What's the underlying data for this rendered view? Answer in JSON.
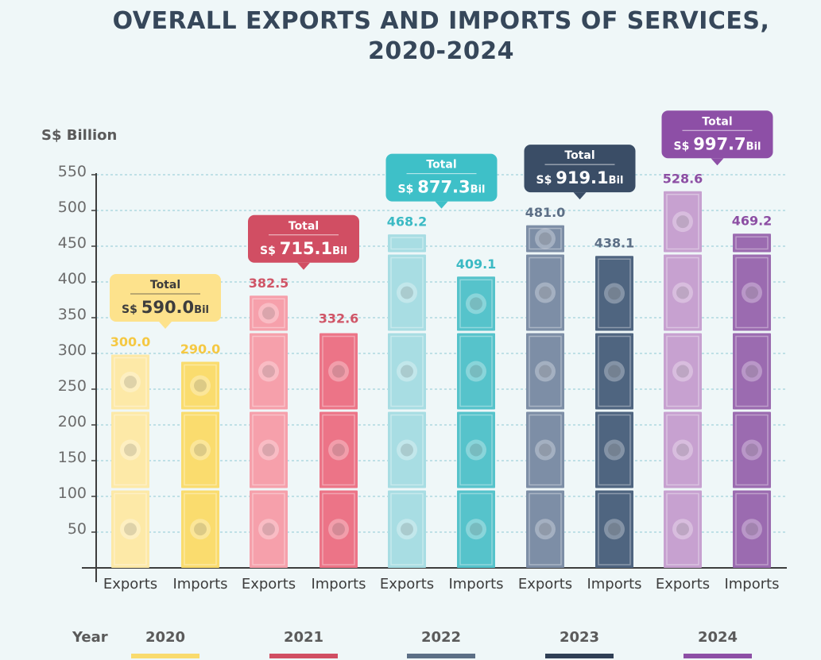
{
  "title_line1": "OVERALL EXPORTS AND IMPORTS OF SERVICES,",
  "title_line2": "2020-2024",
  "legend_label": "Year",
  "total_label": "Total",
  "currency_prefix": "S$",
  "unit_suffix": "Bil",
  "chart_data": {
    "type": "bar",
    "ylabel": "S$ Billion",
    "ylim": [
      0,
      550
    ],
    "yticks": [
      50,
      100,
      150,
      200,
      250,
      300,
      350,
      400,
      450,
      500,
      550
    ],
    "categories": [
      "Exports",
      "Imports",
      "Exports",
      "Imports",
      "Exports",
      "Imports",
      "Exports",
      "Imports",
      "Exports",
      "Imports"
    ],
    "groups": [
      {
        "year": "2020",
        "exports": 300.0,
        "imports": 290.0,
        "exports_label": "300.0",
        "imports_label": "290.0",
        "total": "590.0",
        "color_light": "#fde9a7",
        "color_dark": "#fadc6e",
        "label_color": "#f5c843",
        "box_color": "#fde28c",
        "box_text": "#3d3d3d",
        "legend_color": "#f9db6d"
      },
      {
        "year": "2021",
        "exports": 382.5,
        "imports": 332.6,
        "exports_label": "382.5",
        "imports_label": "332.6",
        "total": "715.1",
        "color_light": "#f6a0ab",
        "color_dark": "#ec7487",
        "label_color": "#d05567",
        "box_color": "#d14e63",
        "box_text": "#ffffff",
        "legend_color": "#d14e63"
      },
      {
        "year": "2022",
        "exports": 468.2,
        "imports": 409.1,
        "exports_label": "468.2",
        "imports_label": "409.1",
        "total": "877.3",
        "color_light": "#a8dde3",
        "color_dark": "#56c3cb",
        "label_color": "#3bbac4",
        "box_color": "#3ec0c8",
        "box_text": "#ffffff",
        "legend_color": "#5c6f86"
      },
      {
        "year": "2023",
        "exports": 481.0,
        "imports": 438.1,
        "exports_label": "481.0",
        "imports_label": "438.1",
        "total": "919.1",
        "color_light": "#7d8ea6",
        "color_dark": "#4f6580",
        "label_color": "#5c6f86",
        "box_color": "#3a4d66",
        "box_text": "#ffffff",
        "legend_color": "#2f3f55"
      },
      {
        "year": "2024",
        "exports": 528.6,
        "imports": 469.2,
        "exports_label": "528.6",
        "imports_label": "469.2",
        "total": "997.7",
        "color_light": "#c7a1d0",
        "color_dark": "#9b6bb0",
        "label_color": "#8c4ea3",
        "box_color": "#8d4fa6",
        "box_text": "#ffffff",
        "legend_color": "#8d4fa6"
      }
    ]
  }
}
